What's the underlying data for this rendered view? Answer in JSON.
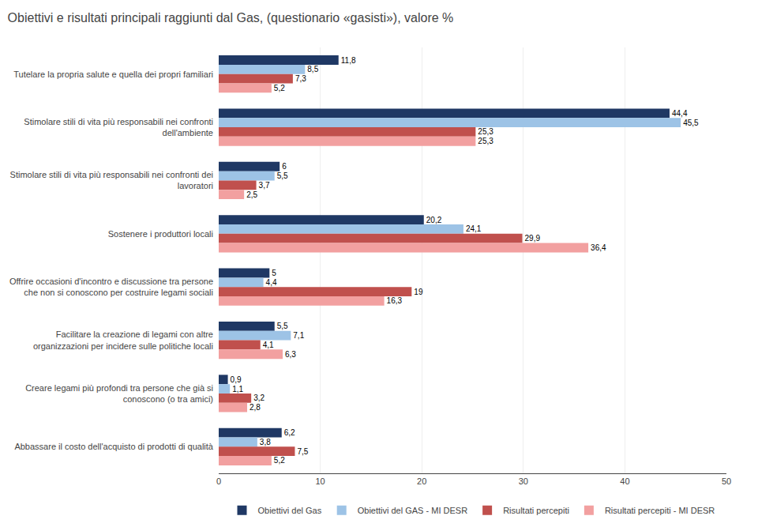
{
  "chart_data": {
    "type": "bar",
    "orientation": "horizontal",
    "title": "Obiettivi e risultati principali raggiunti dal Gas, (questionario «gasisti»), valore %",
    "categories": [
      "Tutelare la propria salute e quella dei propri familiari",
      "Stimolare stili di vita più responsabili nei confronti\ndell'ambiente",
      "Stimolare stili di vita più responsabili nei confronti dei\nlavoratori",
      "Sostenere i produttori locali",
      "Offrire occasioni d'incontro e discussione tra persone\nche non si conoscono per costruire legami sociali",
      "Facilitare la creazione di legami con altre\norganizzazioni per incidere sulle politiche locali",
      "Creare legami più profondi tra persone che già si\nconoscono (o tra amici)",
      "Abbassare il costo dell'acquisto di prodotti di qualità"
    ],
    "series": [
      {
        "name": "Obiettivi del Gas",
        "color": "#1F3864",
        "values": [
          11.8,
          44.4,
          6.0,
          20.2,
          5.0,
          5.5,
          0.9,
          6.2
        ],
        "value_labels": [
          "11,8",
          "44,4",
          "6",
          "20,2",
          "5",
          "5,5",
          "0,9",
          "6,2"
        ]
      },
      {
        "name": "Obiettivi del GAS - MI DESR",
        "color": "#9DC3E6",
        "values": [
          8.5,
          45.5,
          5.5,
          24.1,
          4.4,
          7.1,
          1.1,
          3.8
        ],
        "value_labels": [
          "8,5",
          "45,5",
          "5,5",
          "24,1",
          "4,4",
          "7,1",
          "1,1",
          "3,8"
        ]
      },
      {
        "name": "Risultati percepiti",
        "color": "#C0504D",
        "values": [
          7.3,
          25.3,
          3.7,
          29.9,
          19.0,
          4.1,
          3.2,
          7.5
        ],
        "value_labels": [
          "7,3",
          "25,3",
          "3,7",
          "29,9",
          "19",
          "4,1",
          "3,2",
          "7,5"
        ]
      },
      {
        "name": "Risultati percepiti - MI DESR",
        "color": "#F2A0A0",
        "values": [
          5.2,
          25.3,
          2.5,
          36.4,
          16.3,
          6.3,
          2.8,
          5.2
        ],
        "value_labels": [
          "5,2",
          "25,3",
          "2,5",
          "36,4",
          "16,3",
          "6,3",
          "2,8",
          "5,2"
        ]
      }
    ],
    "xlim": [
      0,
      50
    ],
    "xticks": [
      0,
      10,
      20,
      30,
      40,
      50
    ],
    "grid": true,
    "legend": "bottom",
    "data_labels": true
  }
}
